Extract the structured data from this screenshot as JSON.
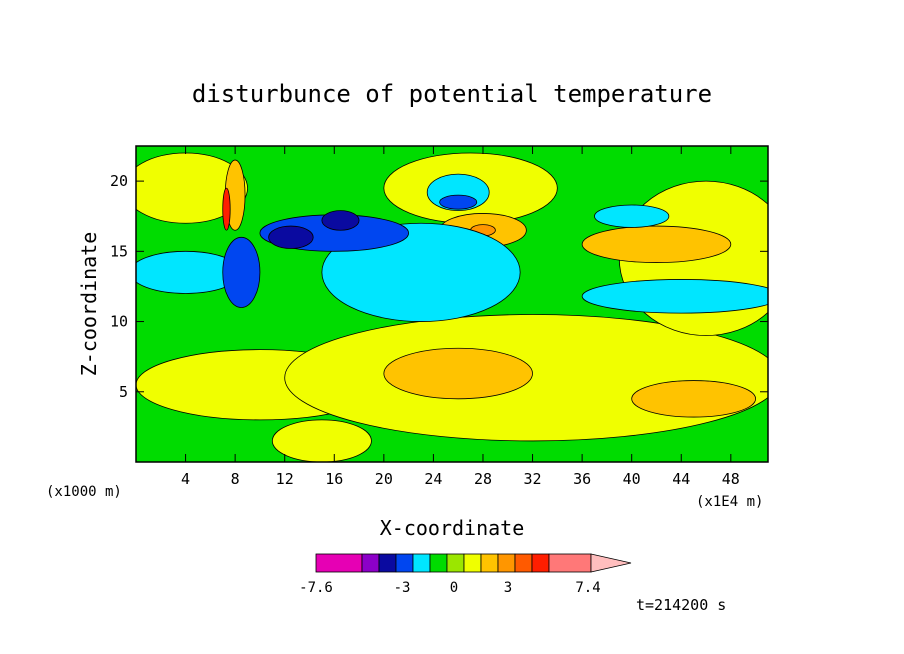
{
  "chart_data": {
    "type": "heatmap",
    "title": "disturbunce of potential temperature",
    "xlabel": "X-coordinate",
    "ylabel": "Z-coordinate",
    "x_unit": "(x1E4 m)",
    "y_unit": "(x1000 m)",
    "xlim": [
      0,
      51
    ],
    "ylim": [
      0,
      22.5
    ],
    "x_ticks": [
      "4",
      "8",
      "12",
      "16",
      "20",
      "24",
      "28",
      "32",
      "36",
      "40",
      "44",
      "48"
    ],
    "y_ticks": [
      "5",
      "10",
      "15",
      "20"
    ],
    "colorbar": {
      "labels": [
        "-7.6",
        "-3",
        "0",
        "3",
        "7.4"
      ],
      "colors": [
        "#e600b4",
        "#8c00c8",
        "#0a0aa0",
        "#0046f0",
        "#00e6ff",
        "#00dc00",
        "#9be600",
        "#f0ff00",
        "#ffc300",
        "#ff9600",
        "#ff5a00",
        "#ff1e00",
        "#ff7878",
        "#ffbebe"
      ]
    },
    "time_label": "t=214200 s",
    "background_level": "#00dc00",
    "regions": [
      {
        "level": "#f0ff00",
        "x": 10,
        "z": 5.5,
        "rx": 10,
        "rz": 2.5
      },
      {
        "level": "#f0ff00",
        "x": 32,
        "z": 6.0,
        "rx": 20,
        "rz": 4.5
      },
      {
        "level": "#f0ff00",
        "x": 46,
        "z": 14.5,
        "rx": 7,
        "rz": 5.5
      },
      {
        "level": "#f0ff00",
        "x": 27,
        "z": 19.5,
        "rx": 7,
        "rz": 2.5
      },
      {
        "level": "#f0ff00",
        "x": 4,
        "z": 19.5,
        "rx": 5,
        "rz": 2.5
      },
      {
        "level": "#f0ff00",
        "x": 15,
        "z": 1.5,
        "rx": 4,
        "rz": 1.5
      },
      {
        "level": "#ffc300",
        "x": 26,
        "z": 6.3,
        "rx": 6,
        "rz": 1.8
      },
      {
        "level": "#ffc300",
        "x": 45,
        "z": 4.5,
        "rx": 5,
        "rz": 1.3
      },
      {
        "level": "#ffc300",
        "x": 28,
        "z": 16.5,
        "rx": 3.5,
        "rz": 1.2
      },
      {
        "level": "#ffc300",
        "x": 42,
        "z": 15.5,
        "rx": 6,
        "rz": 1.3
      },
      {
        "level": "#ff9600",
        "x": 28,
        "z": 16.5,
        "rx": 1,
        "rz": 0.4
      },
      {
        "level": "#00e6ff",
        "x": 23,
        "z": 13.5,
        "rx": 8,
        "rz": 3.5
      },
      {
        "level": "#00e6ff",
        "x": 44,
        "z": 11.8,
        "rx": 8,
        "rz": 1.2
      },
      {
        "level": "#00e6ff",
        "x": 40,
        "z": 17.5,
        "rx": 3,
        "rz": 0.8
      },
      {
        "level": "#00e6ff",
        "x": 4,
        "z": 13.5,
        "rx": 4.5,
        "rz": 1.5
      },
      {
        "level": "#00e6ff",
        "x": 26,
        "z": 19.2,
        "rx": 2.5,
        "rz": 1.3
      },
      {
        "level": "#0046f0",
        "x": 16,
        "z": 16.3,
        "rx": 6,
        "rz": 1.3
      },
      {
        "level": "#0046f0",
        "x": 8.5,
        "z": 13.5,
        "rx": 1.5,
        "rz": 2.5
      },
      {
        "level": "#0046f0",
        "x": 26,
        "z": 18.5,
        "rx": 1.5,
        "rz": 0.5
      },
      {
        "level": "#0a0aa0",
        "x": 12.5,
        "z": 16.0,
        "rx": 1.8,
        "rz": 0.8
      },
      {
        "level": "#0a0aa0",
        "x": 16.5,
        "z": 17.2,
        "rx": 1.5,
        "rz": 0.7
      },
      {
        "level": "#ffc300",
        "x": 8,
        "z": 19.0,
        "rx": 0.8,
        "rz": 2.5
      },
      {
        "level": "#ff1e00",
        "x": 7.3,
        "z": 18.0,
        "rx": 0.3,
        "rz": 1.5
      }
    ]
  }
}
